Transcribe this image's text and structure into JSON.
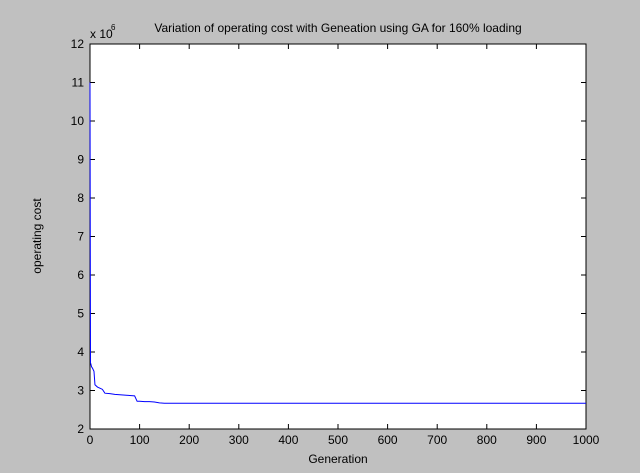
{
  "chart_data": {
    "type": "line",
    "title": "Variation of operating cost with Geneation using GA for 160% loading",
    "xlabel": "Generation",
    "ylabel": "operating cost",
    "y_exponent_label": "x 10",
    "y_exponent": "6",
    "xlim": [
      0,
      1000
    ],
    "ylim": [
      2,
      12
    ],
    "xticks": [
      "0",
      "100",
      "200",
      "300",
      "400",
      "500",
      "600",
      "700",
      "800",
      "900",
      "1000"
    ],
    "yticks": [
      "2",
      "3",
      "4",
      "5",
      "6",
      "7",
      "8",
      "9",
      "10",
      "11",
      "12"
    ],
    "grid": false,
    "series": [
      {
        "color": "#0000ff",
        "x": [
          0,
          1,
          2,
          3,
          5,
          8,
          10,
          15,
          20,
          25,
          30,
          40,
          50,
          60,
          70,
          80,
          90,
          95,
          100,
          110,
          120,
          130,
          140,
          150,
          200,
          300,
          400,
          500,
          600,
          700,
          800,
          900,
          1000
        ],
        "y": [
          11.0,
          3.72,
          3.68,
          3.62,
          3.58,
          3.5,
          3.15,
          3.09,
          3.06,
          3.03,
          2.93,
          2.92,
          2.9,
          2.89,
          2.88,
          2.87,
          2.86,
          2.72,
          2.72,
          2.71,
          2.71,
          2.7,
          2.68,
          2.67,
          2.67,
          2.67,
          2.67,
          2.67,
          2.67,
          2.67,
          2.67,
          2.67,
          2.67
        ]
      }
    ]
  }
}
